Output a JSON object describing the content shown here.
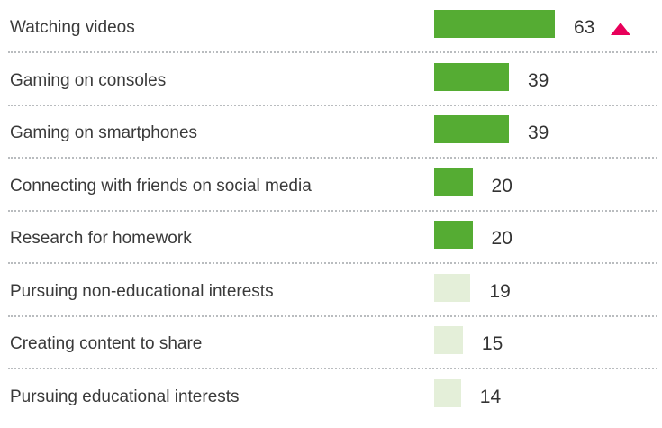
{
  "colors": {
    "highlight": "#55ac33",
    "muted": "#e4efd9",
    "trend_up": "#e8005a"
  },
  "chart_data": {
    "type": "bar",
    "orientation": "horizontal",
    "categories": [
      "Watching videos",
      "Gaming on consoles",
      "Gaming on smartphones",
      "Connecting with friends on social media",
      "Research for homework",
      "Pursuing non-educational interests",
      "Creating content to share",
      "Pursuing educational interests"
    ],
    "values": [
      63,
      39,
      39,
      20,
      20,
      19,
      15,
      14
    ],
    "value_labels": [
      "63",
      "39",
      "39",
      "20",
      "20",
      "19",
      "15",
      "14"
    ],
    "bar_style": [
      "highlight",
      "highlight",
      "highlight",
      "highlight",
      "highlight",
      "muted",
      "muted",
      "muted"
    ],
    "trend_icons": [
      "triangle-up-icon",
      null,
      null,
      null,
      null,
      null,
      null,
      null
    ],
    "title": "",
    "xlabel": "",
    "ylabel": "",
    "xlim": [
      0,
      63
    ],
    "grid": false,
    "legend": "none"
  }
}
